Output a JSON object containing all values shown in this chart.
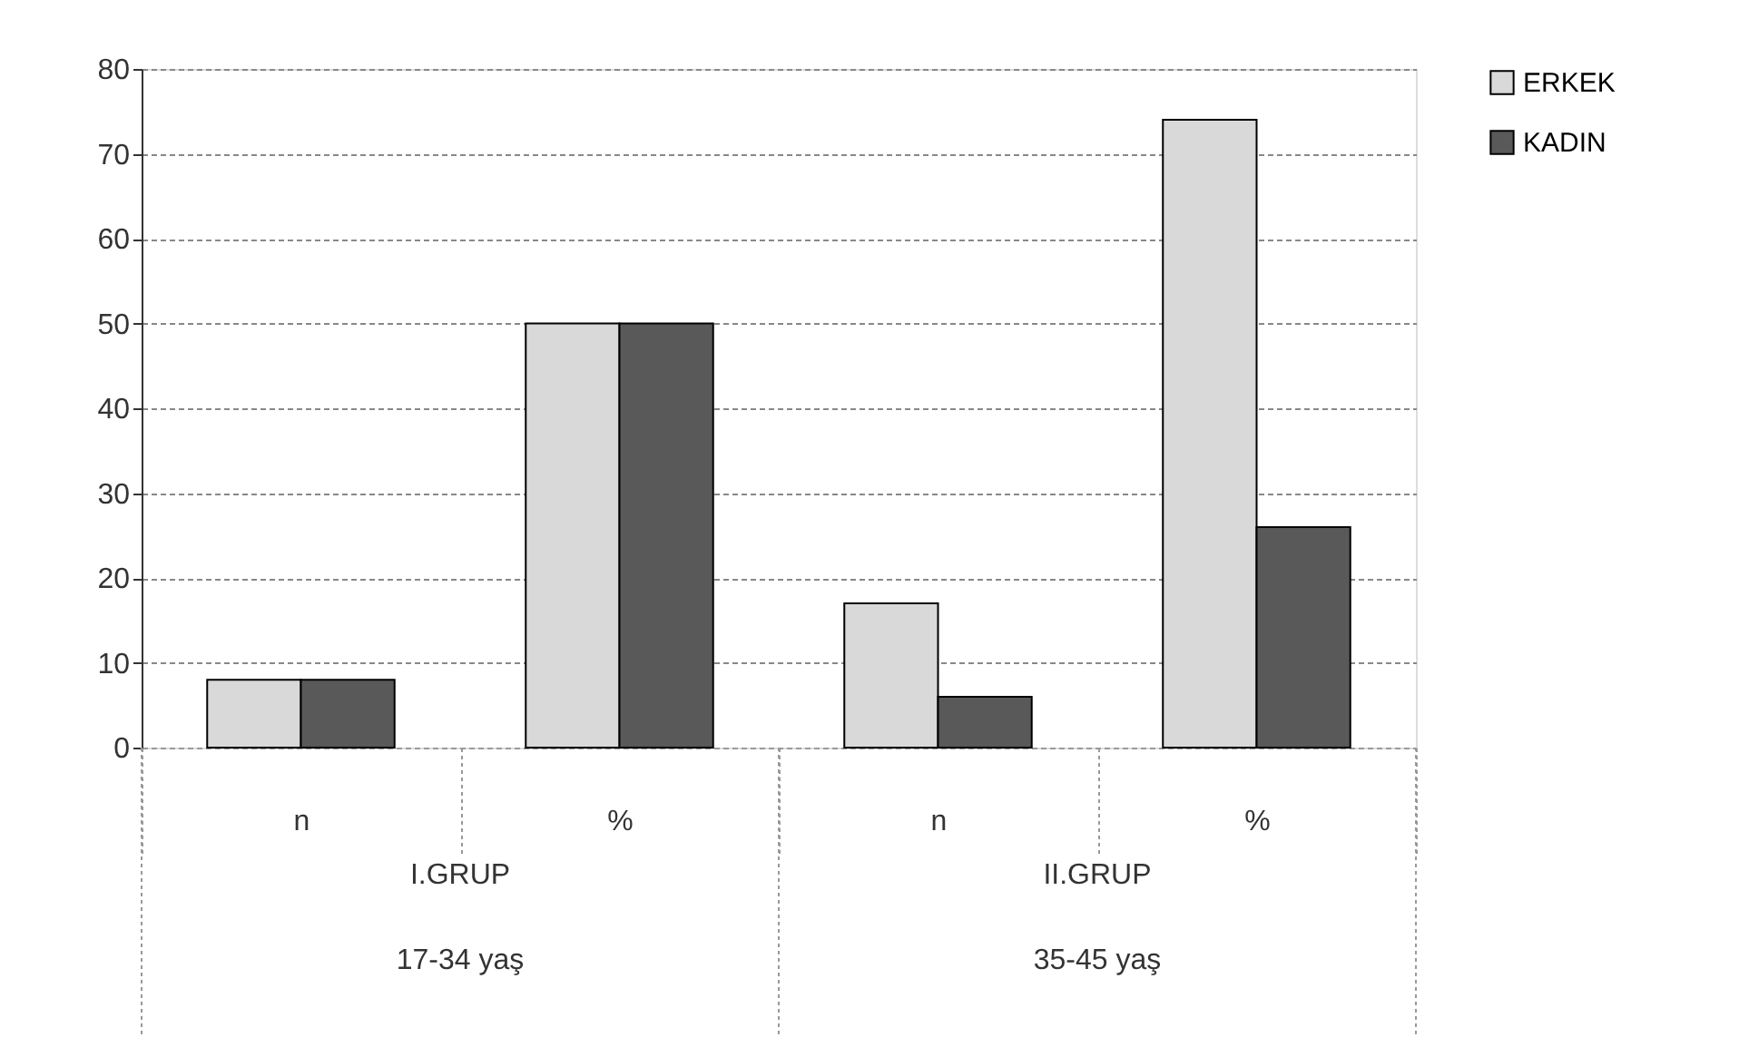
{
  "chart_data": {
    "type": "bar",
    "categories": [
      "n",
      "%",
      "n",
      "%"
    ],
    "series": [
      {
        "name": "ERKEK",
        "color": "#d9d9d9",
        "values": [
          8,
          50,
          17,
          74
        ]
      },
      {
        "name": "KADIN",
        "color": "#595959",
        "values": [
          8,
          50,
          6,
          26
        ]
      }
    ],
    "annotations": [
      "I.GRUP",
      "17-34 yaş",
      "II.GRUP",
      "35-45 yaş"
    ],
    "ylim": [
      0,
      80
    ],
    "yticks": [
      0,
      10,
      20,
      30,
      40,
      50,
      60,
      70,
      80
    ],
    "grid": "y",
    "legend": "right"
  }
}
